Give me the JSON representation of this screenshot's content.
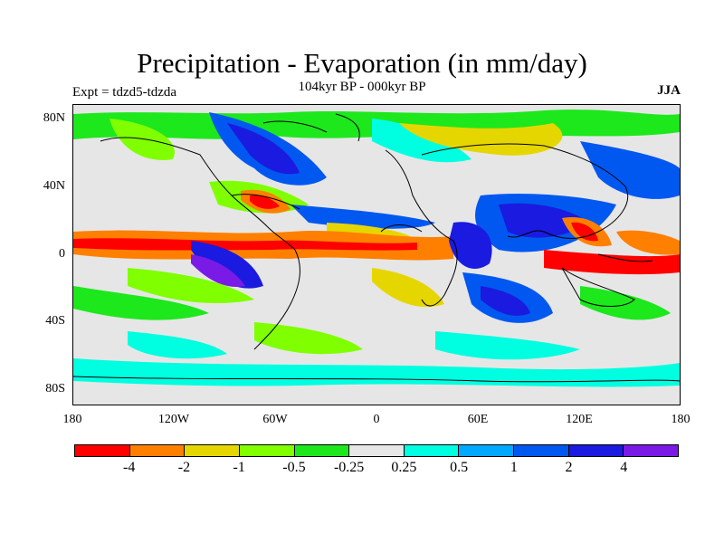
{
  "title": "Precipitation - Evaporation (in mm/day)",
  "subtitle": "104kyr BP - 000kyr BP",
  "left_label": "Expt = tdzd5-tdzda",
  "right_label": "JJA",
  "map": {
    "latitude_labels": [
      "80N",
      "40N",
      "0",
      "40S",
      "80S"
    ],
    "longitude_labels": [
      "180",
      "120W",
      "60W",
      "0",
      "60E",
      "120E",
      "180"
    ],
    "background_color": "#e6e6e6"
  },
  "colorbar": {
    "colors": [
      "#ff0000",
      "#ff8000",
      "#e6d600",
      "#80ff00",
      "#1ce81c",
      "#e6e6e6",
      "#00ffe0",
      "#00a8ff",
      "#0058f0",
      "#1a1ae0",
      "#7a1ae6"
    ],
    "labels": [
      "-4",
      "-2",
      "-1",
      "-0.5",
      "-0.25",
      "0.25",
      "0.5",
      "1",
      "2",
      "4"
    ]
  }
}
